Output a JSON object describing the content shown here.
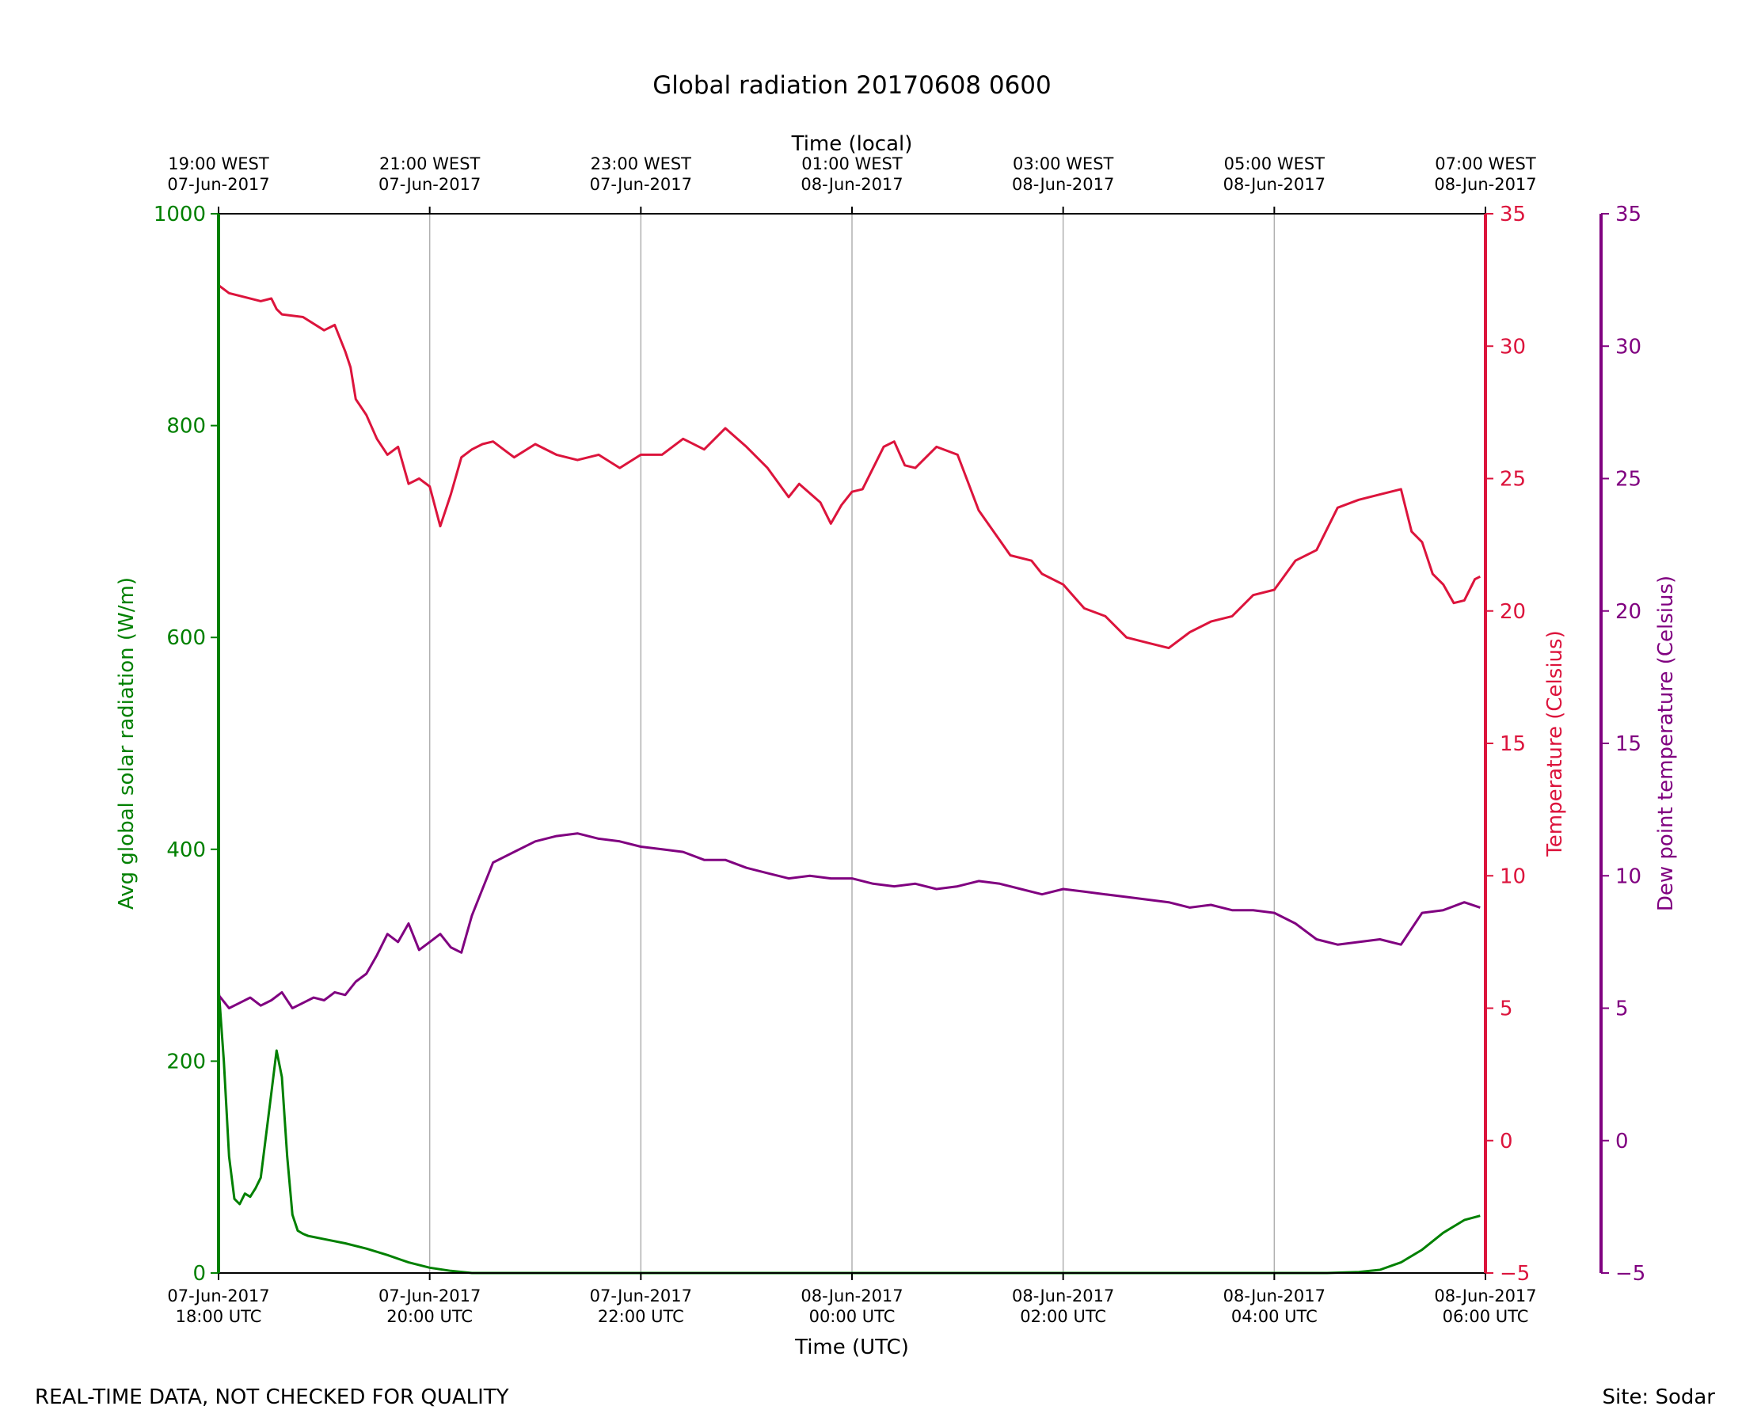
{
  "chart_data": {
    "type": "line",
    "title": "Global radiation 20170608 0600",
    "top_xlabel": "Time (local)",
    "xlabel": "Time (UTC)",
    "xlim_hours": [
      0,
      12
    ],
    "grid": "vertical",
    "top_ticks": [
      {
        "hour": 0,
        "line1": "19:00 WEST",
        "line2": "07-Jun-2017"
      },
      {
        "hour": 2,
        "line1": "21:00 WEST",
        "line2": "07-Jun-2017"
      },
      {
        "hour": 4,
        "line1": "23:00 WEST",
        "line2": "07-Jun-2017"
      },
      {
        "hour": 6,
        "line1": "01:00 WEST",
        "line2": "08-Jun-2017"
      },
      {
        "hour": 8,
        "line1": "03:00 WEST",
        "line2": "08-Jun-2017"
      },
      {
        "hour": 10,
        "line1": "05:00 WEST",
        "line2": "08-Jun-2017"
      },
      {
        "hour": 12,
        "line1": "07:00 WEST",
        "line2": "08-Jun-2017"
      }
    ],
    "bottom_ticks": [
      {
        "hour": 0,
        "line1": "07-Jun-2017",
        "line2": "18:00 UTC"
      },
      {
        "hour": 2,
        "line1": "07-Jun-2017",
        "line2": "20:00 UTC"
      },
      {
        "hour": 4,
        "line1": "07-Jun-2017",
        "line2": "22:00 UTC"
      },
      {
        "hour": 6,
        "line1": "08-Jun-2017",
        "line2": "00:00 UTC"
      },
      {
        "hour": 8,
        "line1": "08-Jun-2017",
        "line2": "02:00 UTC"
      },
      {
        "hour": 10,
        "line1": "08-Jun-2017",
        "line2": "04:00 UTC"
      },
      {
        "hour": 12,
        "line1": "08-Jun-2017",
        "line2": "06:00 UTC"
      }
    ],
    "axes": {
      "radiation": {
        "label": "Avg global solar radiation (W/m)",
        "ylim": [
          0,
          1000
        ],
        "ticks": [
          0,
          200,
          400,
          600,
          800,
          1000
        ],
        "color": "#008000"
      },
      "temperature": {
        "label": "Temperature (Celsius)",
        "ylim": [
          -5,
          35
        ],
        "ticks": [
          -5,
          0,
          5,
          10,
          15,
          20,
          25,
          30,
          35
        ],
        "color": "#dc143c"
      },
      "dewpoint": {
        "label": "Dew point temperature (Celsius)",
        "ylim": [
          -5,
          35
        ],
        "ticks": [
          -5,
          0,
          5,
          10,
          15,
          20,
          25,
          30,
          35
        ],
        "color": "#800080"
      }
    },
    "series": [
      {
        "name": "radiation",
        "axis": "radiation",
        "color": "#008000",
        "x": [
          0,
          0.05,
          0.1,
          0.15,
          0.2,
          0.25,
          0.3,
          0.35,
          0.4,
          0.45,
          0.5,
          0.55,
          0.6,
          0.65,
          0.7,
          0.75,
          0.8,
          0.85,
          0.9,
          1.0,
          1.2,
          1.4,
          1.6,
          1.8,
          2.0,
          2.2,
          2.4,
          3.0,
          4.0,
          6.0,
          8.0,
          10.0,
          10.5,
          10.8,
          11.0,
          11.2,
          11.4,
          11.6,
          11.8,
          11.95
        ],
        "y": [
          270,
          200,
          110,
          70,
          65,
          75,
          72,
          80,
          90,
          130,
          170,
          210,
          185,
          110,
          55,
          40,
          37,
          35,
          34,
          32,
          28,
          23,
          17,
          10,
          5,
          2,
          0,
          0,
          0,
          0,
          0,
          0,
          0,
          1,
          3,
          10,
          22,
          38,
          50,
          54
        ]
      },
      {
        "name": "temperature",
        "axis": "temperature",
        "color": "#dc143c",
        "x": [
          0,
          0.1,
          0.2,
          0.4,
          0.5,
          0.55,
          0.6,
          0.8,
          1.0,
          1.1,
          1.2,
          1.25,
          1.3,
          1.4,
          1.5,
          1.6,
          1.7,
          1.8,
          1.9,
          2.0,
          2.1,
          2.2,
          2.3,
          2.4,
          2.5,
          2.6,
          2.8,
          3.0,
          3.2,
          3.4,
          3.6,
          3.8,
          4.0,
          4.2,
          4.4,
          4.6,
          4.8,
          5.0,
          5.2,
          5.4,
          5.5,
          5.7,
          5.8,
          5.9,
          6.0,
          6.1,
          6.3,
          6.4,
          6.5,
          6.6,
          6.8,
          7.0,
          7.2,
          7.5,
          7.7,
          7.8,
          8.0,
          8.2,
          8.4,
          8.6,
          8.8,
          9.0,
          9.2,
          9.4,
          9.6,
          9.8,
          10.0,
          10.2,
          10.4,
          10.6,
          10.8,
          11.0,
          11.2,
          11.3,
          11.4,
          11.5,
          11.6,
          11.7,
          11.8,
          11.9,
          11.95
        ],
        "y": [
          32.3,
          32.0,
          31.9,
          31.7,
          31.8,
          31.4,
          31.2,
          31.1,
          30.6,
          30.8,
          29.8,
          29.2,
          28.0,
          27.4,
          26.5,
          25.9,
          26.2,
          24.8,
          25.0,
          24.7,
          23.2,
          24.4,
          25.8,
          26.1,
          26.3,
          26.4,
          25.8,
          26.3,
          25.9,
          25.7,
          25.9,
          25.4,
          25.9,
          25.9,
          26.5,
          26.1,
          26.9,
          26.2,
          25.4,
          24.3,
          24.8,
          24.1,
          23.3,
          24.0,
          24.5,
          24.6,
          26.2,
          26.4,
          25.5,
          25.4,
          26.2,
          25.9,
          23.8,
          22.1,
          21.9,
          21.4,
          21.0,
          20.1,
          19.8,
          19.0,
          18.8,
          18.6,
          19.2,
          19.6,
          19.8,
          20.6,
          20.8,
          21.9,
          22.3,
          23.9,
          24.2,
          24.4,
          24.6,
          23.0,
          22.6,
          21.4,
          21.0,
          20.3,
          20.4,
          21.2,
          21.3
        ]
      },
      {
        "name": "dewpoint",
        "axis": "dewpoint",
        "color": "#800080",
        "x": [
          0,
          0.1,
          0.2,
          0.3,
          0.4,
          0.5,
          0.6,
          0.7,
          0.8,
          0.9,
          1.0,
          1.1,
          1.2,
          1.3,
          1.4,
          1.5,
          1.6,
          1.7,
          1.8,
          1.9,
          2.0,
          2.1,
          2.2,
          2.3,
          2.4,
          2.5,
          2.6,
          2.8,
          3.0,
          3.2,
          3.4,
          3.6,
          3.8,
          4.0,
          4.2,
          4.4,
          4.6,
          4.8,
          5.0,
          5.2,
          5.4,
          5.6,
          5.8,
          6.0,
          6.2,
          6.4,
          6.6,
          6.8,
          7.0,
          7.2,
          7.4,
          7.6,
          7.8,
          8.0,
          8.2,
          8.4,
          8.6,
          8.8,
          9.0,
          9.2,
          9.4,
          9.6,
          9.8,
          10.0,
          10.2,
          10.4,
          10.6,
          10.8,
          11.0,
          11.2,
          11.4,
          11.6,
          11.8,
          11.95
        ],
        "y": [
          5.5,
          5.0,
          5.2,
          5.4,
          5.1,
          5.3,
          5.6,
          5.0,
          5.2,
          5.4,
          5.3,
          5.6,
          5.5,
          6.0,
          6.3,
          7.0,
          7.8,
          7.5,
          8.2,
          7.2,
          7.5,
          7.8,
          7.3,
          7.1,
          8.5,
          9.5,
          10.5,
          10.9,
          11.3,
          11.5,
          11.6,
          11.4,
          11.3,
          11.1,
          11.0,
          10.9,
          10.6,
          10.6,
          10.3,
          10.1,
          9.9,
          10.0,
          9.9,
          9.9,
          9.7,
          9.6,
          9.7,
          9.5,
          9.6,
          9.8,
          9.7,
          9.5,
          9.3,
          9.5,
          9.4,
          9.3,
          9.2,
          9.1,
          9.0,
          8.8,
          8.9,
          8.7,
          8.7,
          8.6,
          8.2,
          7.6,
          7.4,
          7.5,
          7.6,
          7.4,
          8.6,
          8.7,
          9.0,
          8.8
        ]
      }
    ]
  },
  "footer": {
    "note": "REAL-TIME DATA, NOT CHECKED FOR QUALITY",
    "site": "Site: Sodar"
  }
}
